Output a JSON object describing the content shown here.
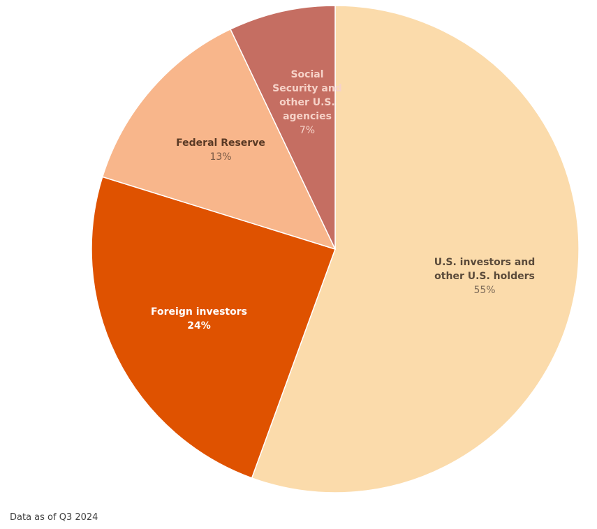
{
  "chart_data": {
    "type": "pie",
    "start_angle_deg": 0,
    "direction": "clockwise",
    "slices": [
      {
        "label_lines": [
          "U.S. investors and",
          "other U.S. holders"
        ],
        "value": 55,
        "value_label": "55%",
        "color": "#fbdbab",
        "name_color": "#5a4a3a",
        "value_color": "#7d6b59"
      },
      {
        "label_lines": [
          "Foreign investors"
        ],
        "value": 24,
        "value_label": "24%",
        "color": "#df5200",
        "name_color": "#ffffff",
        "value_color": "#ffffff"
      },
      {
        "label_lines": [
          "Federal Reserve"
        ],
        "value": 13,
        "value_label": "13%",
        "color": "#f8b68b",
        "name_color": "#5a3a25",
        "value_color": "#7a5a45"
      },
      {
        "label_lines": [
          "Social",
          "Security and",
          "other U.S.",
          "agencies"
        ],
        "value": 7,
        "value_label": "7%",
        "color": "#c56e62",
        "name_color": "#f6d2c8",
        "value_color": "#f6d2c8"
      }
    ]
  },
  "footnote": "Data as of Q3 2024"
}
